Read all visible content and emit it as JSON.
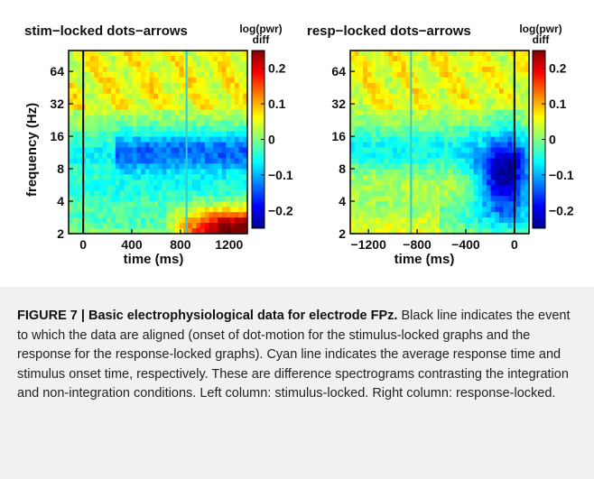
{
  "chart_data": [
    {
      "type": "heatmap",
      "title": "stim−locked dots−arrows",
      "xlabel": "time (ms)",
      "ylabel": "frequency (Hz)",
      "x_ticks": [
        "0",
        "400",
        "800",
        "1200"
      ],
      "x_tick_values": [
        0,
        400,
        800,
        1200
      ],
      "xlim": [
        -120,
        1350
      ],
      "y_ticks": [
        "2",
        "4",
        "8",
        "16",
        "32",
        "64"
      ],
      "y_tick_values": [
        2,
        4,
        8,
        16,
        32,
        64
      ],
      "ylim": [
        2,
        100
      ],
      "y_scale": "log",
      "event_line": {
        "x": 0,
        "color": "#000000"
      },
      "rt_line": {
        "x": 850,
        "color": "#33cccc"
      },
      "colorbar": {
        "label": "log(pwr)\ndiff",
        "ticks": [
          "0.2",
          "0.1",
          "0",
          "−0.1",
          "−0.2"
        ],
        "tick_values": [
          0.2,
          0.1,
          0,
          -0.1,
          -0.2
        ],
        "clim": [
          -0.25,
          0.25
        ],
        "colormap": "jet"
      }
    },
    {
      "type": "heatmap",
      "title": "resp−locked dots−arrows",
      "xlabel": "time (ms)",
      "ylabel": "",
      "x_ticks": [
        "−1200",
        "−800",
        "−400",
        "0"
      ],
      "x_tick_values": [
        -1200,
        -800,
        -400,
        0
      ],
      "xlim": [
        -1350,
        120
      ],
      "y_ticks": [
        "2",
        "4",
        "8",
        "16",
        "32",
        "64"
      ],
      "y_tick_values": [
        2,
        4,
        8,
        16,
        32,
        64
      ],
      "ylim": [
        2,
        100
      ],
      "y_scale": "log",
      "event_line": {
        "x": 0,
        "color": "#000000"
      },
      "rt_line": {
        "x": -850,
        "color": "#33cccc"
      },
      "colorbar": {
        "label": "log(pwr)\ndiff",
        "ticks": [
          "0.2",
          "0.1",
          "0",
          "−0.1",
          "−0.2"
        ],
        "tick_values": [
          0.2,
          0.1,
          0,
          -0.1,
          -0.2
        ],
        "clim": [
          -0.25,
          0.25
        ],
        "colormap": "jet"
      }
    }
  ],
  "caption": {
    "bold": "FIGURE 7 | Basic electrophysiological data for electrode FPz.",
    "text": " Black line indicates the event to which the data are aligned (onset of dot-motion for the stimulus-locked graphs and the response for the response-locked graphs). Cyan line indicates the average response time and stimulus onset time, respectively. These are difference spectrograms contrasting the integration and non-integration conditions. Left column: stimulus-locked. Right column: response-locked."
  }
}
